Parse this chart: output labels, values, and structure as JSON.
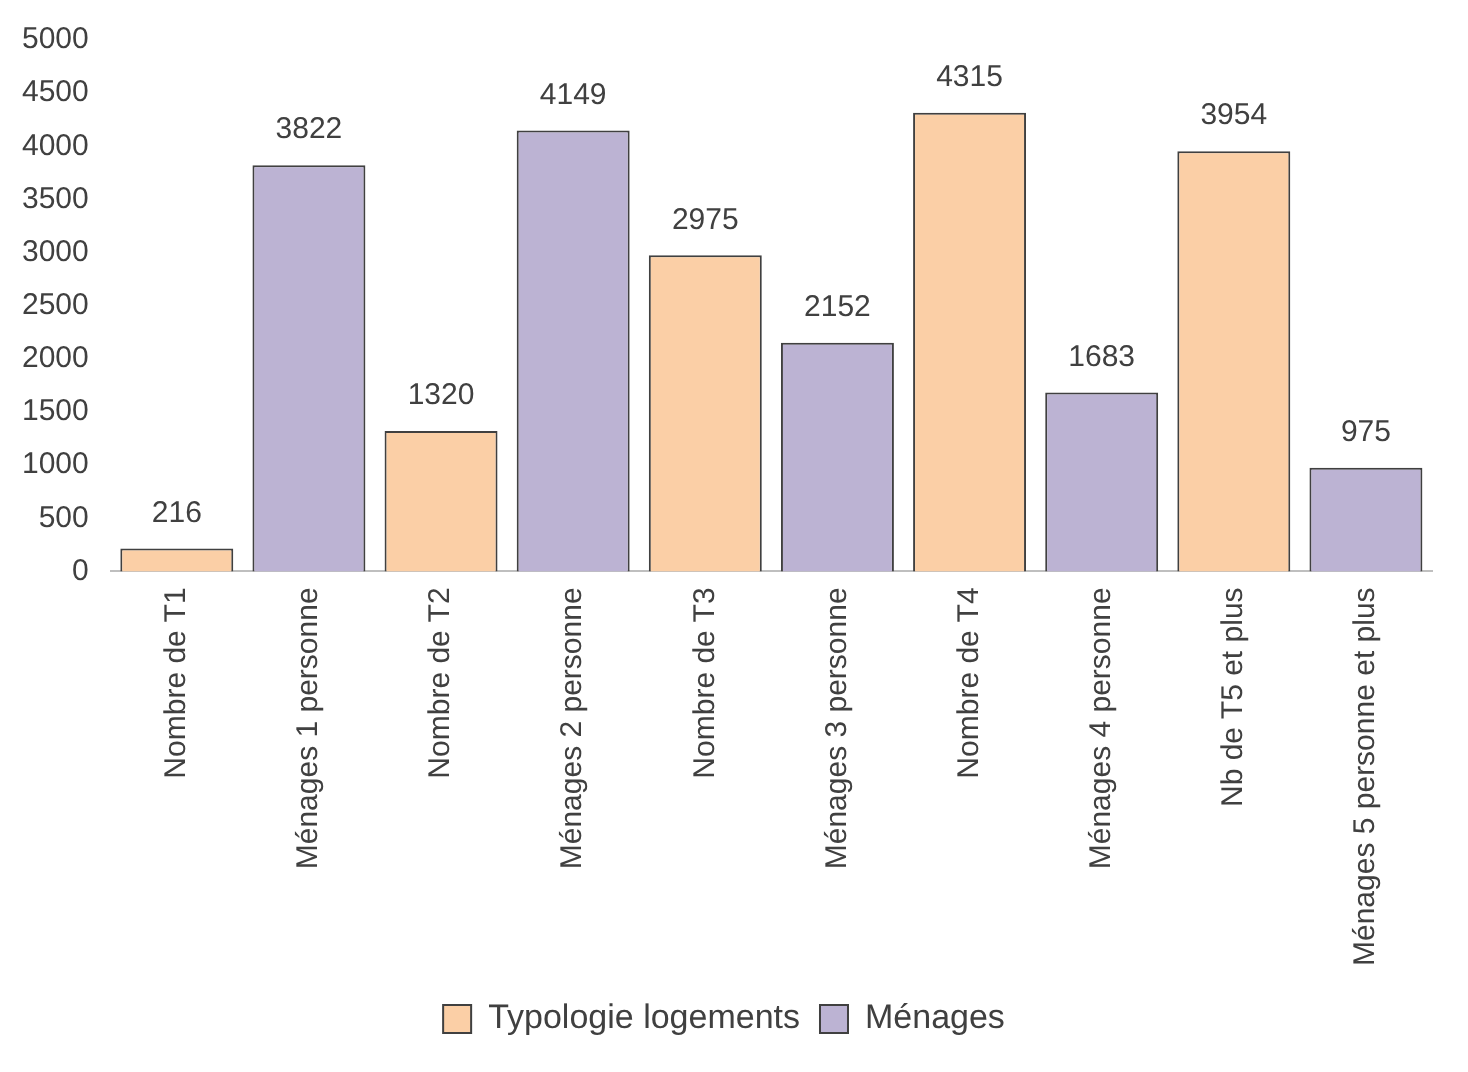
{
  "chart_data": {
    "type": "bar",
    "categories": [
      "Nombre de T1",
      "Ménages 1 personne",
      "Nombre de T2",
      "Ménages 2 personne",
      "Nombre de T3",
      "Ménages 3 personne",
      "Nombre de T4",
      "Ménages 4 personne",
      "Nb de T5 et plus",
      "Ménages 5 personne et plus"
    ],
    "series": [
      {
        "name": "Typologie logements",
        "color": "#fbcfa6",
        "values": [
          216,
          null,
          1320,
          null,
          2975,
          null,
          4315,
          null,
          3954,
          null
        ]
      },
      {
        "name": "Ménages",
        "color": "#bcb3d3",
        "values": [
          null,
          3822,
          null,
          4149,
          null,
          2152,
          null,
          1683,
          null,
          975
        ]
      }
    ],
    "ylim": [
      0,
      5000
    ],
    "yticks": [
      0,
      500,
      1000,
      1500,
      2000,
      2500,
      3000,
      3500,
      4000,
      4500,
      5000
    ],
    "data_labels": true,
    "grid": false,
    "legend": "bottom"
  }
}
